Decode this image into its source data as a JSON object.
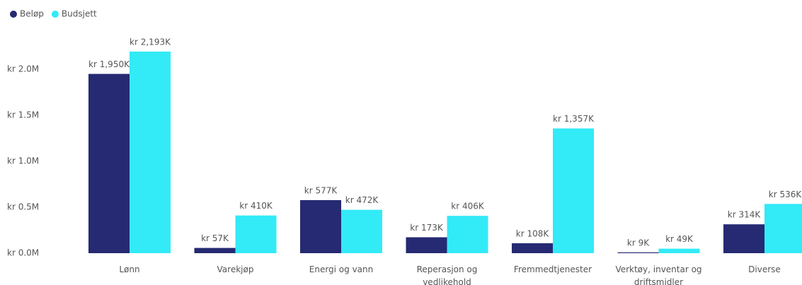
{
  "chart_data": {
    "type": "bar",
    "categories": [
      "Lønn",
      "Varekjøp",
      "Energi og vann",
      "Reperasjon og vedlikehold",
      "Fremmedtjenester",
      "Verktøy, inventar og driftsmidler",
      "Diverse"
    ],
    "series": [
      {
        "name": "Beløp",
        "color": "#252a72",
        "values": [
          1950000,
          57000,
          577000,
          173000,
          108000,
          9000,
          314000
        ],
        "value_labels": [
          "kr 1,950K",
          "kr 57K",
          "kr 577K",
          "kr 173K",
          "kr 108K",
          "kr 9K",
          "kr 314K"
        ]
      },
      {
        "name": "Budsjett",
        "color": "#33eaf7",
        "values": [
          2193000,
          410000,
          472000,
          406000,
          1357000,
          49000,
          536000
        ],
        "value_labels": [
          "kr 2,193K",
          "kr 410K",
          "kr 472K",
          "kr 406K",
          "kr 1,357K",
          "kr 49K",
          "kr 536K"
        ]
      }
    ],
    "ylim": [
      0,
      2400000
    ],
    "yticks": [
      {
        "value": 0,
        "label": "kr 0.0M"
      },
      {
        "value": 500000,
        "label": "kr 0.5M"
      },
      {
        "value": 1000000,
        "label": "kr 1.0M"
      },
      {
        "value": 1500000,
        "label": "kr 1.5M"
      },
      {
        "value": 2000000,
        "label": "kr 2.0M"
      }
    ],
    "grid": false,
    "legend": "top-left"
  }
}
